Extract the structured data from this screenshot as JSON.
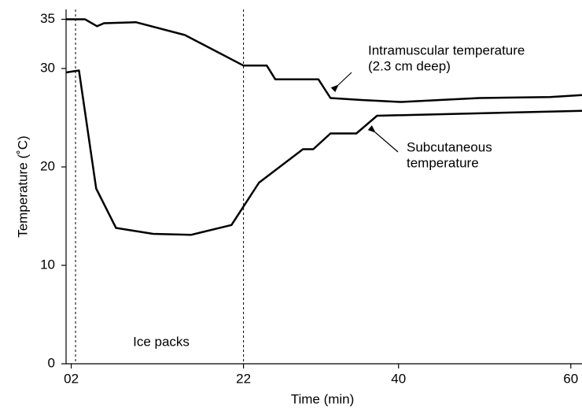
{
  "chart_data": {
    "type": "line",
    "xlabel": "Time (min)",
    "ylabel": "Temperature (˚C)",
    "xlim": [
      1.4,
      61.3
    ],
    "ylim": [
      0,
      36
    ],
    "xticks": [
      {
        "value": 2,
        "label": "02"
      },
      22,
      40,
      60
    ],
    "yticks": [
      0,
      10,
      20,
      30,
      35
    ],
    "ice_pack_interval": [
      2.5,
      22
    ],
    "ice_pack_label": "Ice packs",
    "series": [
      {
        "name": "Intramuscular temperature",
        "color": "#000000",
        "x": [
          1.4,
          3.6,
          5.0,
          5.8,
          9.5,
          15.2,
          22,
          24.7,
          25.7,
          30.7,
          32.1,
          35.7,
          40.3,
          44.8,
          49.4,
          57.6,
          61.3
        ],
        "values": [
          35.0,
          35.0,
          34.3,
          34.6,
          34.7,
          33.4,
          30.3,
          30.3,
          28.9,
          28.9,
          27.0,
          26.8,
          26.6,
          26.8,
          27.0,
          27.1,
          27.3
        ]
      },
      {
        "name": "Subcutaneous temperature",
        "color": "#000000",
        "x": [
          1.4,
          2.9,
          4.9,
          7.2,
          11.5,
          15.9,
          20.6,
          23.8,
          28.9,
          30.1,
          32.1,
          35.1,
          37.5,
          61.3
        ],
        "values": [
          29.6,
          29.8,
          17.8,
          13.8,
          13.2,
          13.1,
          14.1,
          18.4,
          21.8,
          21.8,
          23.4,
          23.4,
          25.2,
          25.7
        ]
      }
    ],
    "annotations": [
      {
        "lines": [
          "Intramuscular temperature",
          "(2.3 cm deep)"
        ]
      },
      {
        "lines": [
          "Subcutaneous",
          "temperature"
        ]
      }
    ]
  }
}
